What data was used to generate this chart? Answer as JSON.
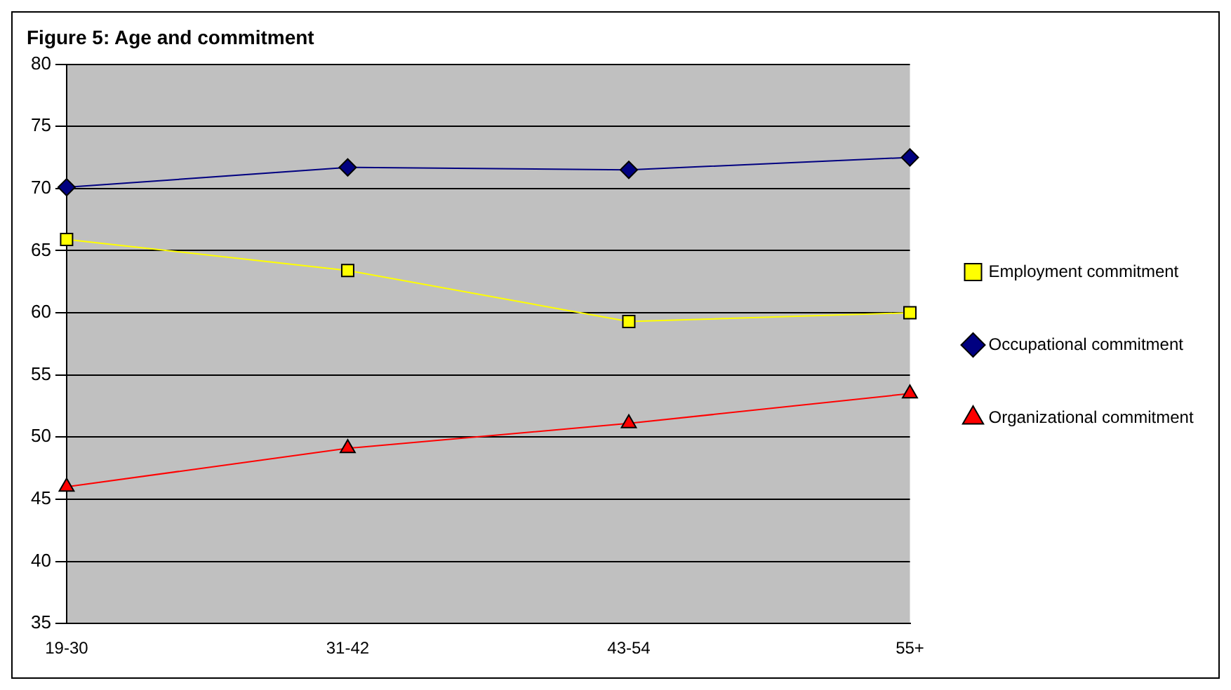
{
  "chart_data": {
    "type": "line",
    "title": "Figure 5: Age and commitment",
    "categories": [
      "19-30",
      "31-42",
      "43-54",
      "55+"
    ],
    "series": [
      {
        "name": "Employment commitment",
        "color": "#ffff00",
        "marker": "square",
        "values": [
          65.9,
          63.4,
          59.3,
          60.0
        ]
      },
      {
        "name": "Occupational commitment",
        "color": "#000080",
        "marker": "diamond",
        "values": [
          70.1,
          71.7,
          71.5,
          72.5
        ]
      },
      {
        "name": "Organizational commitment",
        "color": "#ff0000",
        "marker": "triangle",
        "values": [
          46.0,
          49.1,
          51.1,
          53.5
        ]
      }
    ],
    "ylim": [
      35,
      80
    ],
    "yticks": [
      35,
      40,
      45,
      50,
      55,
      60,
      65,
      70,
      75,
      80
    ],
    "grid": "y",
    "legend": "right"
  }
}
